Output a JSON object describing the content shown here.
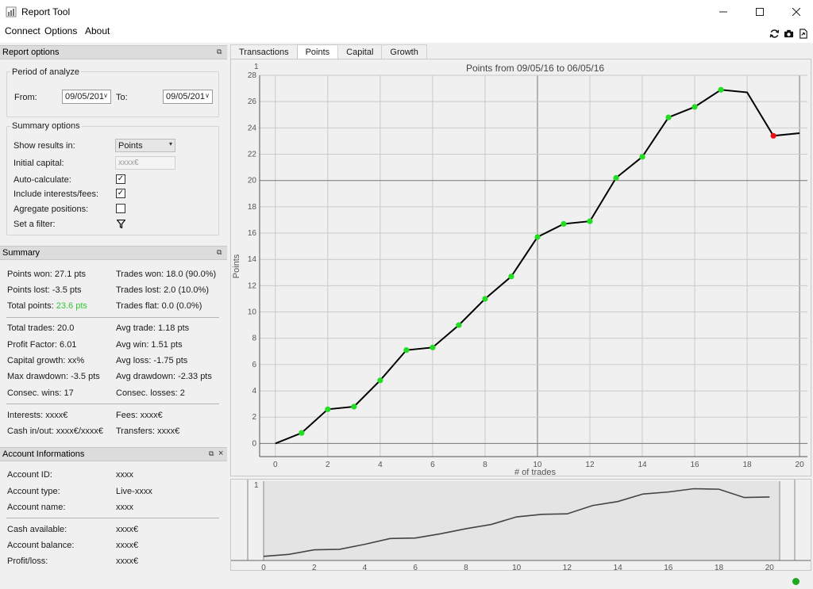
{
  "window": {
    "title": "Report Tool"
  },
  "menu": [
    "Connect",
    "Options",
    "About"
  ],
  "toolbar_icons": [
    "refresh-icon",
    "camera-icon",
    "export-icon"
  ],
  "report_options": {
    "header": "Report options",
    "period": {
      "title": "Period of analyze",
      "from_label": "From:",
      "from_value": "09/05/201",
      "to_label": "To:",
      "to_value": "09/05/201"
    },
    "summary_options": {
      "title": "Summary options",
      "show_results_label": "Show results in:",
      "show_results_value": "Points",
      "initial_capital_label": "Initial capital:",
      "initial_capital_placeholder": "xxxx€",
      "auto_calculate_label": "Auto-calculate:",
      "auto_calculate_checked": true,
      "include_interests_label": "Include interests/fees:",
      "include_interests_checked": true,
      "aggregate_label": "Agregate positions:",
      "aggregate_checked": false,
      "filter_label": "Set a filter:"
    }
  },
  "summary": {
    "header": "Summary",
    "points_won": "Points won: 27.1 pts",
    "trades_won": "Trades won: 18.0 (90.0%)",
    "points_lost": "Points lost: -3.5 pts",
    "trades_lost": "Trades lost: 2.0 (10.0%)",
    "total_points_label": "Total points: ",
    "total_points_value": "23.6 pts",
    "trades_flat": "Trades flat: 0.0 (0.0%)",
    "total_trades": "Total trades: 20.0",
    "avg_trade": "Avg trade: 1.18 pts",
    "profit_factor": "Profit Factor: 6.01",
    "avg_win": "Avg win: 1.51 pts",
    "capital_growth": "Capital growth: xx%",
    "avg_loss": "Avg loss: -1.75 pts",
    "max_drawdown": "Max drawdown: -3.5 pts",
    "avg_drawdown": "Avg drawdown: -2.33 pts",
    "consec_wins": "Consec. wins: 17",
    "consec_losses": "Consec. losses: 2",
    "interests": "Interests: xxxx€",
    "fees": "Fees: xxxx€",
    "cash_in_out": "Cash in/out: xxxx€/xxxx€",
    "transfers": "Transfers: xxxx€"
  },
  "account": {
    "header": "Account Informations",
    "id_label": "Account ID:",
    "id_value": "xxxx",
    "type_label": "Account type:",
    "type_value": "Live-xxxx",
    "name_label": "Account name:",
    "name_value": "xxxx",
    "cash_label": "Cash available:",
    "cash_value": "xxxx€",
    "balance_label": "Account balance:",
    "balance_value": "xxxx€",
    "pl_label": "Profit/loss:",
    "pl_value": "xxxx€"
  },
  "tabs": [
    "Transactions",
    "Points",
    "Capital",
    "Growth"
  ],
  "active_tab": 1,
  "chart_data": {
    "type": "line",
    "title": "Points from 09/05/16 to 06/05/16",
    "xlabel": "# of trades",
    "ylabel": "Points",
    "xlim": [
      -0.6,
      20.3
    ],
    "ylim": [
      -1,
      28
    ],
    "xticks": [
      0,
      2,
      4,
      6,
      8,
      10,
      12,
      14,
      16,
      18,
      20
    ],
    "yticks": [
      0,
      2,
      4,
      6,
      8,
      10,
      12,
      14,
      16,
      18,
      20,
      22,
      24,
      26,
      28
    ],
    "grid": true,
    "x": [
      0,
      1,
      2,
      3,
      4,
      5,
      6,
      7,
      8,
      9,
      10,
      11,
      12,
      13,
      14,
      15,
      16,
      17,
      18,
      19,
      20
    ],
    "y": [
      0,
      0.8,
      2.6,
      2.8,
      4.8,
      7.1,
      7.3,
      9.0,
      11.0,
      12.7,
      15.7,
      16.7,
      16.9,
      20.2,
      21.8,
      24.8,
      25.6,
      26.9,
      26.7,
      23.4,
      23.6
    ],
    "marker_colors": [
      "none",
      "#22dd22",
      "#22dd22",
      "#22dd22",
      "#22dd22",
      "#22dd22",
      "#22dd22",
      "#22dd22",
      "#22dd22",
      "#22dd22",
      "#22dd22",
      "#22dd22",
      "#22dd22",
      "#22dd22",
      "#22dd22",
      "#22dd22",
      "#22dd22",
      "#22dd22",
      "none",
      "#ee1111",
      "none"
    ],
    "corner_label": "1",
    "mini_corner_label": "1",
    "mini_xticks": [
      0,
      2,
      4,
      6,
      8,
      10,
      12,
      14,
      16,
      18,
      20
    ]
  },
  "status": {
    "connected_color": "#1ea81e"
  }
}
